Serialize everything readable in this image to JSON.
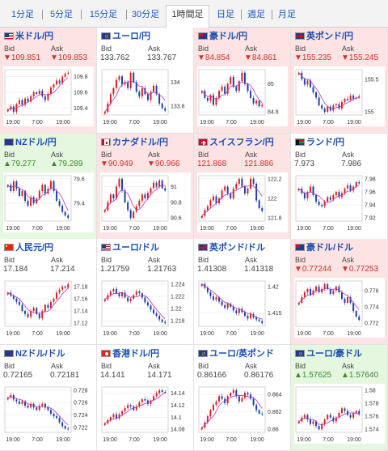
{
  "tabs": [
    {
      "label": "1分足"
    },
    {
      "label": "5分足"
    },
    {
      "label": "15分足"
    },
    {
      "label": "30分足"
    },
    {
      "label": "1時間足",
      "active": true
    },
    {
      "label": "日足"
    },
    {
      "label": "週足"
    },
    {
      "label": "月足"
    }
  ],
  "colors": {
    "down_bg": "#fde3e3",
    "up_bg": "#e5f7df",
    "down_text": "#d0302a",
    "up_text": "#3a8a2e",
    "candle_up": "#d42020",
    "candle_down": "#1c3fa8",
    "ma": "#c030c0"
  },
  "bid_label": "Bid",
  "ask_label": "Ask",
  "pairs": [
    {
      "name": "米ドル/円",
      "flag": "us",
      "trend": "down",
      "bid": "▼109.851",
      "ask": "▼109.853",
      "ticks": [
        "109.8",
        "109.6",
        "109.4"
      ],
      "times": [
        "19:00",
        "7:00",
        "19:00"
      ],
      "series": [
        109.38,
        109.42,
        109.35,
        109.45,
        109.5,
        109.44,
        109.52,
        109.48,
        109.55,
        109.6,
        109.58,
        109.62,
        109.55,
        109.5,
        109.58,
        109.66,
        109.7,
        109.75,
        109.72,
        109.8,
        109.84,
        109.85
      ]
    },
    {
      "name": "ユーロ/円",
      "flag": "eu",
      "trend": "flat",
      "bid": "133.762",
      "ask": "133.767",
      "ticks": [
        "134",
        "133.8"
      ],
      "times": [
        "19:00",
        "7:00",
        "19:00"
      ],
      "series": [
        133.75,
        133.82,
        133.9,
        133.95,
        134.02,
        134.05,
        133.98,
        134.0,
        133.95,
        134.08,
        134.0,
        133.92,
        133.88,
        133.95,
        133.9,
        133.85,
        133.92,
        133.97,
        133.9,
        133.82,
        133.78,
        133.76
      ]
    },
    {
      "name": "豪ドル/円",
      "flag": "au",
      "trend": "down",
      "bid": "▼84.854",
      "ask": "▼84.861",
      "ticks": [
        "85",
        "84.8"
      ],
      "times": [
        "19:00",
        "7:00",
        "19:00"
      ],
      "series": [
        84.95,
        84.9,
        84.88,
        84.92,
        84.85,
        84.9,
        84.95,
        84.98,
        84.93,
        85.0,
        85.05,
        84.98,
        84.95,
        85.02,
        85.08,
        85.0,
        84.95,
        84.9,
        84.86,
        84.88,
        84.84,
        84.85
      ]
    },
    {
      "name": "英ポンド/円",
      "flag": "gb",
      "trend": "down",
      "bid": "▼155.235",
      "ask": "▼155.245",
      "ticks": [
        "155.5",
        "155"
      ],
      "times": [
        "19:00",
        "7:00",
        "19:00"
      ],
      "series": [
        155.6,
        155.5,
        155.42,
        155.48,
        155.38,
        155.3,
        155.22,
        155.1,
        155.05,
        155.0,
        155.08,
        155.02,
        155.1,
        155.12,
        155.05,
        155.15,
        155.2,
        155.18,
        155.25,
        155.2,
        155.22,
        155.24
      ]
    },
    {
      "name": "NZドル/円",
      "flag": "nz",
      "trend": "up",
      "bid": "▲79.277",
      "ask": "▲79.289",
      "ticks": [
        "79.6",
        "79.4"
      ],
      "times": [
        "19:00",
        "7:00",
        "19:00"
      ],
      "series": [
        79.55,
        79.5,
        79.58,
        79.52,
        79.46,
        79.5,
        79.42,
        79.38,
        79.45,
        79.4,
        79.44,
        79.5,
        79.55,
        79.48,
        79.52,
        79.58,
        79.5,
        79.42,
        79.38,
        79.33,
        79.3,
        79.28
      ]
    },
    {
      "name": "カナダドル/円",
      "flag": "ca",
      "trend": "down",
      "bid": "▼90.949",
      "ask": "▼90.966",
      "ticks": [
        "91",
        "90.8",
        "90.6"
      ],
      "times": [
        "19:00",
        "7:00",
        "19:00"
      ],
      "series": [
        90.7,
        90.8,
        90.9,
        90.85,
        91.0,
        91.1,
        90.95,
        90.8,
        90.7,
        90.6,
        90.68,
        90.75,
        90.82,
        90.9,
        90.85,
        90.92,
        90.98,
        91.05,
        91.0,
        91.08,
        90.98,
        90.95
      ]
    },
    {
      "name": "スイスフラン/円",
      "flag": "ch",
      "trend": "down",
      "bid": "121.868",
      "ask": "121.886",
      "ticks": [
        "122.2",
        "122",
        "121.8"
      ],
      "times": [
        "19:00",
        "7:00",
        "19:00"
      ],
      "series": [
        121.82,
        121.88,
        121.92,
        121.98,
        122.02,
        121.95,
        122.0,
        122.08,
        122.12,
        122.05,
        122.0,
        122.1,
        122.15,
        122.2,
        122.12,
        122.05,
        122.1,
        122.2,
        122.15,
        121.98,
        121.9,
        121.87
      ]
    },
    {
      "name": "ランド/円",
      "flag": "za",
      "trend": "flat",
      "bid": "7.973",
      "ask": "7.986",
      "ticks": [
        "7.98",
        "7.96",
        "7.94",
        "7.92"
      ],
      "times": [
        "19:00",
        "7:00",
        "19:00"
      ],
      "series": [
        7.965,
        7.958,
        7.95,
        7.96,
        7.968,
        7.955,
        7.945,
        7.94,
        7.938,
        7.945,
        7.952,
        7.948,
        7.955,
        7.96,
        7.952,
        7.958,
        7.965,
        7.97,
        7.962,
        7.968,
        7.975,
        7.973
      ]
    },
    {
      "name": "人民元/円",
      "flag": "cn",
      "trend": "flat",
      "bid": "17.184",
      "ask": "17.214",
      "ticks": [
        "17.18",
        "17.16",
        "17.14",
        "17.12"
      ],
      "times": [
        "19:00",
        "7:00",
        "19:00"
      ],
      "series": [
        17.17,
        17.165,
        17.16,
        17.155,
        17.15,
        17.14,
        17.135,
        17.13,
        17.14,
        17.145,
        17.135,
        17.128,
        17.14,
        17.15,
        17.145,
        17.155,
        17.16,
        17.17,
        17.175,
        17.18,
        17.178,
        17.184
      ]
    },
    {
      "name": "ユーロ/ドル",
      "flag": "us",
      "trend": "flat",
      "bid": "1.21759",
      "ask": "1.21763",
      "ticks": [
        "1.224",
        "1.222",
        "1.22",
        "1.218"
      ],
      "times": [
        "19:00",
        "7:00",
        "19:00"
      ],
      "series": [
        1.2215,
        1.2222,
        1.2228,
        1.2232,
        1.2225,
        1.222,
        1.2226,
        1.2218,
        1.2212,
        1.2216,
        1.2222,
        1.2228,
        1.2225,
        1.2218,
        1.221,
        1.2205,
        1.2198,
        1.2192,
        1.2188,
        1.2182,
        1.2178,
        1.2176
      ]
    },
    {
      "name": "英ポンド/ドル",
      "flag": "gb",
      "trend": "flat",
      "bid": "1.41308",
      "ask": "1.41318",
      "ticks": [
        "1.42",
        "1.415"
      ],
      "times": [
        "19:00",
        "7:00",
        "19:00"
      ],
      "series": [
        1.4205,
        1.4198,
        1.419,
        1.4182,
        1.4175,
        1.418,
        1.4172,
        1.4165,
        1.416,
        1.4168,
        1.4162,
        1.4155,
        1.415,
        1.4158,
        1.4152,
        1.4145,
        1.414,
        1.4148,
        1.4142,
        1.4138,
        1.4135,
        1.4131
      ]
    },
    {
      "name": "豪ドル/ドル",
      "flag": "au",
      "trend": "down",
      "bid": "▼0.77244",
      "ask": "▼0.77253",
      "ticks": [
        "0.776",
        "0.774",
        "0.772"
      ],
      "times": [
        "19:00",
        "7:00",
        "19:00"
      ],
      "series": [
        0.7745,
        0.7752,
        0.7758,
        0.7762,
        0.7755,
        0.776,
        0.7765,
        0.7758,
        0.7762,
        0.7768,
        0.7762,
        0.7756,
        0.776,
        0.7765,
        0.7758,
        0.775,
        0.7745,
        0.7752,
        0.7745,
        0.7735,
        0.7728,
        0.7724
      ]
    },
    {
      "name": "NZドル/ドル",
      "flag": "nz",
      "trend": "flat",
      "bid": "0.72165",
      "ask": "0.72181",
      "ticks": [
        "0.728",
        "0.726",
        "0.724",
        "0.722"
      ],
      "times": [
        "19:00",
        "7:00",
        "19:00"
      ],
      "series": [
        0.7268,
        0.7272,
        0.7265,
        0.7262,
        0.7258,
        0.7262,
        0.7255,
        0.7252,
        0.7258,
        0.7252,
        0.7248,
        0.7255,
        0.7258,
        0.7252,
        0.7248,
        0.7242,
        0.7238,
        0.7235,
        0.7228,
        0.7222,
        0.7218,
        0.7217
      ]
    },
    {
      "name": "香港ドル/円",
      "flag": "hk",
      "trend": "flat",
      "bid": "14.141",
      "ask": "14.171",
      "ticks": [
        "14.14",
        "14.12",
        "14.1",
        "14.08"
      ],
      "times": [
        "19:00",
        "7:00",
        "19:00"
      ],
      "series": [
        14.09,
        14.095,
        14.1,
        14.105,
        14.098,
        14.105,
        14.11,
        14.115,
        14.12,
        14.118,
        14.112,
        14.118,
        14.125,
        14.13,
        14.128,
        14.122,
        14.128,
        14.135,
        14.14,
        14.145,
        14.142,
        14.141
      ]
    },
    {
      "name": "ユーロ/英ポンド",
      "flag": "eu",
      "trend": "flat",
      "bid": "0.86166",
      "ask": "0.86176",
      "ticks": [
        "0.864",
        "0.862",
        "0.86"
      ],
      "times": [
        "19:00",
        "7:00",
        "19:00"
      ],
      "series": [
        0.8602,
        0.8608,
        0.8615,
        0.8622,
        0.8628,
        0.8632,
        0.8638,
        0.8635,
        0.863,
        0.8638,
        0.8642,
        0.8645,
        0.8638,
        0.8632,
        0.8636,
        0.8642,
        0.864,
        0.8635,
        0.8628,
        0.8622,
        0.8618,
        0.8617
      ]
    },
    {
      "name": "ユーロ/豪ドル",
      "flag": "eu",
      "trend": "up",
      "bid": "▲1.57625",
      "ask": "▲1.57640",
      "ticks": [
        "1.58",
        "1.578",
        "1.576",
        "1.574"
      ],
      "times": [
        "19:00",
        "7:00",
        "19:00"
      ],
      "series": [
        1.5752,
        1.5758,
        1.5762,
        1.5755,
        1.5748,
        1.5752,
        1.5745,
        1.574,
        1.5748,
        1.5755,
        1.5762,
        1.5758,
        1.5752,
        1.5758,
        1.5765,
        1.5772,
        1.5768,
        1.5762,
        1.5758,
        1.5765,
        1.5768,
        1.5763
      ]
    }
  ]
}
